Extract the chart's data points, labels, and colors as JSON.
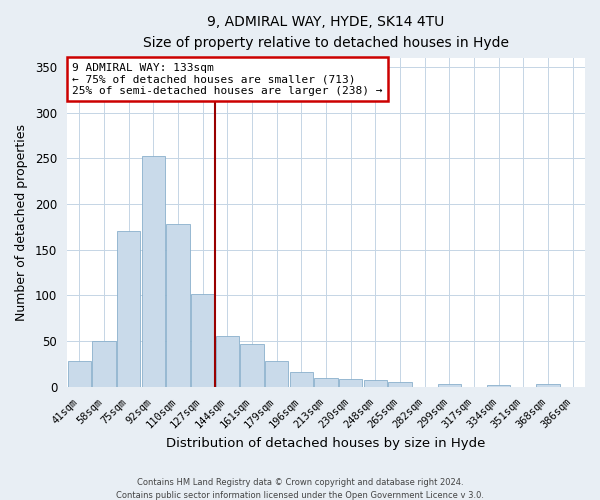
{
  "title": "9, ADMIRAL WAY, HYDE, SK14 4TU",
  "subtitle": "Size of property relative to detached houses in Hyde",
  "xlabel": "Distribution of detached houses by size in Hyde",
  "ylabel": "Number of detached properties",
  "bar_color": "#c9daea",
  "bar_edgecolor": "#8ab0cc",
  "categories": [
    "41sqm",
    "58sqm",
    "75sqm",
    "92sqm",
    "110sqm",
    "127sqm",
    "144sqm",
    "161sqm",
    "179sqm",
    "196sqm",
    "213sqm",
    "230sqm",
    "248sqm",
    "265sqm",
    "282sqm",
    "299sqm",
    "317sqm",
    "334sqm",
    "351sqm",
    "368sqm",
    "386sqm"
  ],
  "values": [
    28,
    50,
    170,
    252,
    178,
    102,
    55,
    47,
    28,
    16,
    10,
    9,
    7,
    5,
    0,
    3,
    0,
    2,
    0,
    3,
    0
  ],
  "vline_x": 5.5,
  "vline_color": "#990000",
  "annotation_title": "9 ADMIRAL WAY: 133sqm",
  "annotation_line1": "← 75% of detached houses are smaller (713)",
  "annotation_line2": "25% of semi-detached houses are larger (238) →",
  "annotation_box_edgecolor": "#cc0000",
  "ylim": [
    0,
    360
  ],
  "yticks": [
    0,
    50,
    100,
    150,
    200,
    250,
    300,
    350
  ],
  "footer1": "Contains HM Land Registry data © Crown copyright and database right 2024.",
  "footer2": "Contains public sector information licensed under the Open Government Licence v 3.0.",
  "background_color": "#e8eef4",
  "plot_background": "#ffffff",
  "grid_color": "#c5d5e5"
}
